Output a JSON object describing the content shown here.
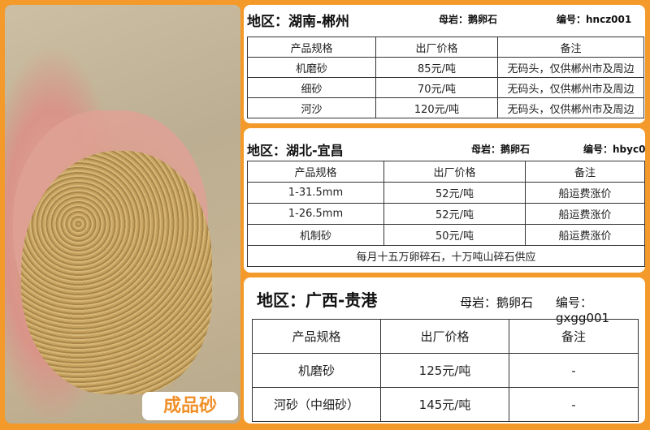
{
  "photo": {
    "label": "成品砂"
  },
  "panels": [
    {
      "title": "地区：湖南-郴州",
      "rock": "母岩：鹅卵石",
      "code": "编号：hncz001",
      "headers": [
        "产品规格",
        "出厂价格",
        "备注"
      ],
      "rows": [
        [
          "机磨砂",
          "85元/吨",
          "无码头，仅供郴州市及周边"
        ],
        [
          "细砂",
          "70元/吨",
          "无码头，仅供郴州市及周边"
        ],
        [
          "河沙",
          "120元/吨",
          "无码头，仅供郴州市及周边"
        ]
      ]
    },
    {
      "title": "地区：湖北-宜昌",
      "rock": "母岩：鹅卵石",
      "code": "编号：hbyc0",
      "headers": [
        "产品规格",
        "出厂价格",
        "备注"
      ],
      "rows": [
        [
          "1-31.5mm",
          "52元/吨",
          "船运费涨价"
        ],
        [
          "1-26.5mm",
          "52元/吨",
          "船运费涨价"
        ],
        [
          "机制砂",
          "50元/吨",
          "船运费涨价"
        ]
      ],
      "footer": "每月十五万卵碎石，十万吨山碎石供应"
    },
    {
      "title": "地区：广西-贵港",
      "rock": "母岩：鹅卵石",
      "code": "编号：gxgg001",
      "headers": [
        "产品规格",
        "出厂价格",
        "备注"
      ],
      "rows": [
        [
          "机磨砂",
          "125元/吨",
          "-"
        ],
        [
          "河砂（中细砂）",
          "145元/吨",
          "-"
        ]
      ]
    }
  ]
}
